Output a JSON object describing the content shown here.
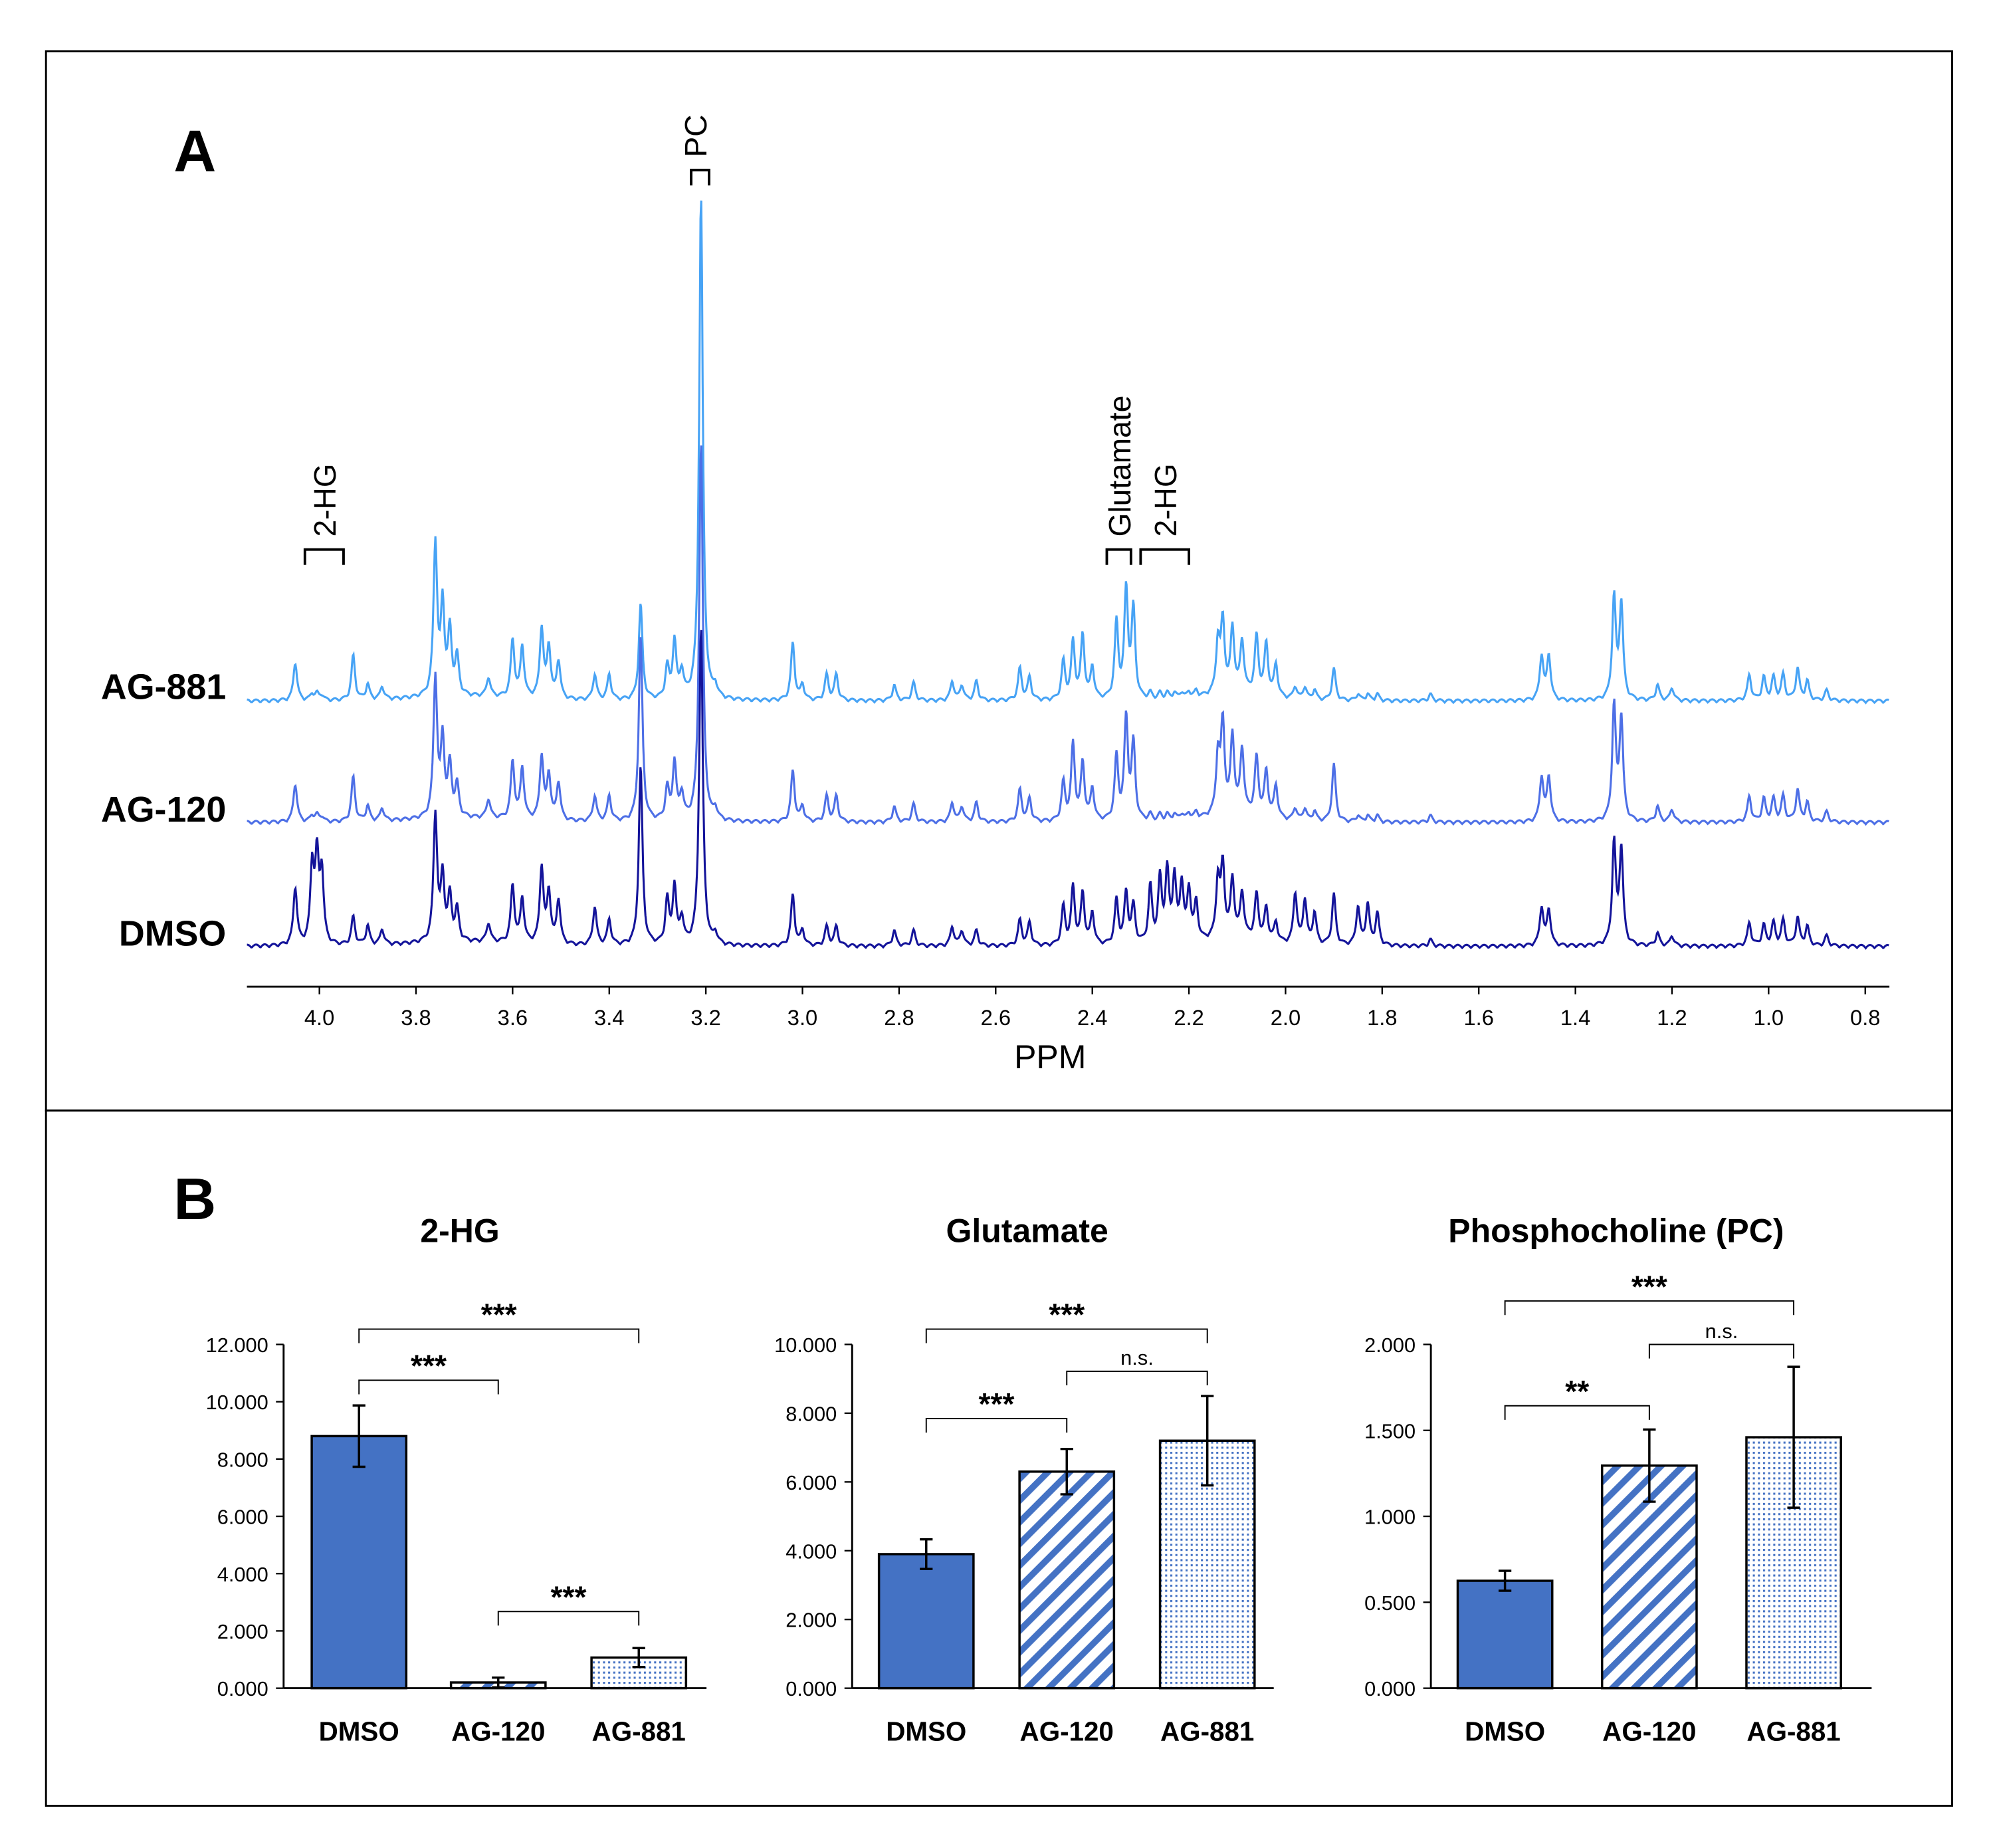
{
  "panels": {
    "a": "A",
    "b": "B"
  },
  "chart_data": [
    {
      "type": "line",
      "title": "",
      "xlabel": "PPM",
      "xlim": [
        4.15,
        0.75
      ],
      "x_reversed": true,
      "xticks": [
        "4.0",
        "3.8",
        "3.6",
        "3.4",
        "3.2",
        "3.0",
        "2.8",
        "2.6",
        "2.4",
        "2.2",
        "2.0",
        "1.8",
        "1.6",
        "1.4",
        "1.2",
        "1.0",
        "0.8"
      ],
      "series_labels": [
        "AG-881",
        "AG-120",
        "DMSO"
      ],
      "colors": {
        "AG-881": "#47a3f5",
        "AG-120": "#4d6fe6",
        "DMSO": "#14149a"
      },
      "annotations": [
        {
          "label": "PC",
          "ppm": [
            3.21,
            3.19
          ]
        },
        {
          "label": "2-HG",
          "ppm": [
            4.03,
            3.95
          ]
        },
        {
          "label": "Glutamate",
          "ppm": [
            2.37,
            2.32
          ]
        },
        {
          "label": "2-HG",
          "ppm": [
            2.3,
            2.2
          ]
        }
      ],
      "peaks_ppm_intensity": {
        "columns": [
          "ppm",
          "AG-881",
          "AG-120",
          "DMSO"
        ],
        "rows": [
          [
            4.05,
            30,
            30,
            45
          ],
          [
            4.015,
            5,
            5,
            60
          ],
          [
            4.005,
            5,
            5,
            65
          ],
          [
            3.995,
            4,
            4,
            55
          ],
          [
            3.93,
            35,
            35,
            22
          ],
          [
            3.9,
            12,
            12,
            15
          ],
          [
            3.87,
            10,
            10,
            12
          ],
          [
            3.76,
            120,
            110,
            100
          ],
          [
            3.745,
            70,
            60,
            50
          ],
          [
            3.73,
            50,
            40,
            35
          ],
          [
            3.715,
            30,
            25,
            25
          ],
          [
            3.65,
            15,
            15,
            15
          ],
          [
            3.6,
            45,
            45,
            45
          ],
          [
            3.58,
            40,
            40,
            35
          ],
          [
            3.54,
            55,
            50,
            60
          ],
          [
            3.525,
            40,
            35,
            40
          ],
          [
            3.505,
            30,
            30,
            35
          ],
          [
            3.43,
            20,
            20,
            30
          ],
          [
            3.4,
            20,
            20,
            20
          ],
          [
            3.335,
            75,
            145,
            140
          ],
          [
            3.28,
            25,
            25,
            35
          ],
          [
            3.265,
            45,
            45,
            45
          ],
          [
            3.25,
            20,
            20,
            20
          ],
          [
            3.21,
            395,
            297,
            249
          ],
          [
            3.18,
            8,
            8,
            8
          ],
          [
            3.02,
            45,
            40,
            40
          ],
          [
            3.0,
            12,
            12,
            12
          ],
          [
            2.95,
            20,
            20,
            15
          ],
          [
            2.93,
            20,
            20,
            15
          ],
          [
            2.81,
            12,
            12,
            12
          ],
          [
            2.77,
            14,
            14,
            12
          ],
          [
            2.69,
            15,
            15,
            15
          ],
          [
            2.67,
            12,
            12,
            12
          ],
          [
            2.64,
            15,
            15,
            12
          ],
          [
            2.55,
            25,
            25,
            20
          ],
          [
            2.53,
            18,
            18,
            18
          ],
          [
            2.46,
            30,
            30,
            30
          ],
          [
            2.44,
            45,
            60,
            45
          ],
          [
            2.42,
            50,
            45,
            40
          ],
          [
            2.4,
            25,
            25,
            25
          ],
          [
            2.35,
            60,
            50,
            35
          ],
          [
            2.33,
            85,
            80,
            40
          ],
          [
            2.315,
            70,
            60,
            30
          ],
          [
            2.28,
            5,
            5,
            45
          ],
          [
            2.26,
            5,
            5,
            50
          ],
          [
            2.245,
            5,
            5,
            55
          ],
          [
            2.23,
            5,
            5,
            50
          ],
          [
            2.215,
            5,
            5,
            45
          ],
          [
            2.2,
            5,
            5,
            40
          ],
          [
            2.185,
            5,
            5,
            30
          ],
          [
            2.14,
            40,
            45,
            45
          ],
          [
            2.13,
            55,
            70,
            55
          ],
          [
            2.11,
            50,
            60,
            45
          ],
          [
            2.09,
            40,
            50,
            35
          ],
          [
            2.06,
            45,
            45,
            35
          ],
          [
            2.04,
            40,
            35,
            25
          ],
          [
            2.02,
            25,
            25,
            15
          ],
          [
            1.98,
            10,
            10,
            40
          ],
          [
            1.96,
            10,
            10,
            35
          ],
          [
            1.94,
            8,
            8,
            25
          ],
          [
            1.9,
            25,
            45,
            40
          ],
          [
            1.85,
            5,
            5,
            30
          ],
          [
            1.83,
            5,
            5,
            32
          ],
          [
            1.81,
            5,
            5,
            25
          ],
          [
            1.7,
            5,
            5,
            5
          ],
          [
            1.47,
            35,
            35,
            30
          ],
          [
            1.455,
            35,
            35,
            28
          ],
          [
            1.32,
            80,
            90,
            80
          ],
          [
            1.305,
            75,
            80,
            75
          ],
          [
            1.23,
            12,
            12,
            10
          ],
          [
            1.2,
            10,
            10,
            8
          ],
          [
            1.04,
            20,
            20,
            18
          ],
          [
            1.01,
            18,
            18,
            16
          ],
          [
            0.99,
            18,
            18,
            18
          ],
          [
            0.97,
            20,
            20,
            20
          ],
          [
            0.94,
            25,
            25,
            22
          ],
          [
            0.92,
            15,
            15,
            15
          ],
          [
            0.88,
            8,
            8,
            8
          ]
        ]
      }
    },
    {
      "type": "bar",
      "title": "2-HG",
      "categories": [
        "DMSO",
        "AG-120",
        "AG-881"
      ],
      "values": [
        8.8,
        0.2,
        1.07
      ],
      "errors": [
        1.07,
        0.17,
        0.33
      ],
      "ylim": [
        0,
        12
      ],
      "yticks": [
        "0.000",
        "2.000",
        "4.000",
        "6.000",
        "8.000",
        "10.000",
        "12.000"
      ],
      "comparisons": [
        {
          "pair": [
            0,
            2
          ],
          "label": "***"
        },
        {
          "pair": [
            0,
            1
          ],
          "label": "***"
        },
        {
          "pair": [
            1,
            2
          ],
          "label": "***"
        }
      ]
    },
    {
      "type": "bar",
      "title": "Glutamate",
      "categories": [
        "DMSO",
        "AG-120",
        "AG-881"
      ],
      "values": [
        3.9,
        6.3,
        7.2
      ],
      "errors": [
        0.43,
        0.66,
        1.3
      ],
      "ylim": [
        0,
        10
      ],
      "yticks": [
        "0.000",
        "2.000",
        "4.000",
        "6.000",
        "8.000",
        "10.000"
      ],
      "comparisons": [
        {
          "pair": [
            0,
            2
          ],
          "label": "***"
        },
        {
          "pair": [
            1,
            2
          ],
          "label": "n.s."
        },
        {
          "pair": [
            0,
            1
          ],
          "label": "***"
        }
      ]
    },
    {
      "type": "bar",
      "title": "Phosphocholine (PC)",
      "categories": [
        "DMSO",
        "AG-120",
        "AG-881"
      ],
      "values": [
        0.625,
        1.295,
        1.46
      ],
      "errors": [
        0.058,
        0.21,
        0.41
      ],
      "ylim": [
        0,
        2
      ],
      "yticks": [
        "0.000",
        "0.500",
        "1.000",
        "1.500",
        "2.000"
      ],
      "comparisons": [
        {
          "pair": [
            0,
            2
          ],
          "label": "***"
        },
        {
          "pair": [
            1,
            2
          ],
          "label": "n.s."
        },
        {
          "pair": [
            0,
            1
          ],
          "label": "**"
        }
      ]
    }
  ],
  "bar_colors": {
    "fill": "#4472c4",
    "edge": "#000000"
  }
}
